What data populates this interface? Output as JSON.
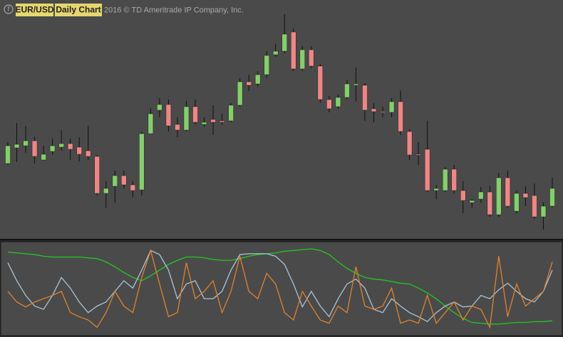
{
  "header": {
    "icon": "!",
    "symbol": "EUR/USD",
    "period": "Daily Chart",
    "copyright": "2016 © TD Ameritrade IP Company, Inc."
  },
  "chart_data": [
    {
      "type": "candlestick",
      "up_color": "#84cf6a",
      "down_color": "#f08585",
      "ylim": [
        0,
        335
      ],
      "open": [
        105,
        127,
        130,
        137,
        110,
        122,
        128,
        133,
        128,
        123,
        115,
        63,
        73,
        88,
        75,
        68,
        147,
        180,
        188,
        160,
        152,
        185,
        160,
        167,
        165,
        165,
        187,
        220,
        217,
        230,
        258,
        263,
        290,
        238,
        265,
        242,
        195,
        185,
        198,
        215,
        215,
        182,
        178,
        177,
        192,
        150,
        118,
        125,
        67,
        67,
        97,
        67,
        50,
        55,
        65,
        33,
        85,
        38,
        63,
        60,
        30,
        45
      ],
      "high": [
        135,
        162,
        158,
        143,
        130,
        140,
        152,
        140,
        142,
        158,
        117,
        80,
        95,
        95,
        80,
        150,
        183,
        197,
        195,
        170,
        193,
        195,
        170,
        187,
        175,
        190,
        225,
        230,
        235,
        263,
        273,
        315,
        295,
        270,
        270,
        245,
        200,
        202,
        223,
        240,
        218,
        190,
        185,
        197,
        208,
        153,
        135,
        165,
        75,
        100,
        103,
        80,
        55,
        72,
        73,
        92,
        95,
        67,
        73,
        77,
        50,
        85
      ],
      "low": [
        103,
        107,
        120,
        105,
        109,
        117,
        123,
        110,
        108,
        110,
        60,
        43,
        50,
        70,
        57,
        60,
        147,
        170,
        150,
        142,
        150,
        160,
        157,
        145,
        160,
        163,
        185,
        207,
        213,
        225,
        255,
        260,
        235,
        235,
        239,
        190,
        177,
        182,
        195,
        192,
        165,
        163,
        170,
        170,
        145,
        110,
        103,
        65,
        55,
        65,
        63,
        35,
        43,
        50,
        30,
        30,
        43,
        35,
        45,
        27,
        12,
        43
      ],
      "close": [
        130,
        132,
        137,
        115,
        118,
        130,
        133,
        125,
        118,
        115,
        63,
        70,
        88,
        75,
        67,
        147,
        175,
        188,
        158,
        152,
        185,
        163,
        163,
        163,
        163,
        187,
        220,
        215,
        230,
        257,
        263,
        287,
        238,
        265,
        242,
        195,
        182,
        198,
        217,
        217,
        180,
        178,
        177,
        192,
        150,
        117,
        117,
        67,
        70,
        97,
        67,
        53,
        53,
        65,
        33,
        85,
        45,
        63,
        57,
        30,
        45,
        70
      ]
    },
    {
      "type": "line",
      "ylim": [
        0,
        100
      ],
      "series": [
        {
          "color": "#22c722",
          "values": [
            96,
            95,
            94,
            93,
            91,
            90,
            90,
            90,
            90,
            89,
            88,
            84,
            78,
            71,
            65,
            61,
            67,
            74,
            81,
            86,
            90,
            90,
            89,
            87,
            86,
            86,
            88,
            91,
            93,
            94,
            95,
            97,
            98,
            99,
            100,
            98,
            93,
            84,
            76,
            70,
            65,
            63,
            62,
            60,
            58,
            57,
            52,
            46,
            39,
            30,
            22,
            15,
            10,
            9,
            8,
            8,
            9,
            10,
            10,
            11,
            11,
            12
          ]
        },
        {
          "color": "#a9c4d8",
          "values": [
            83,
            61,
            43,
            30,
            26,
            43,
            65,
            52,
            35,
            22,
            30,
            35,
            48,
            61,
            52,
            74,
            98,
            93,
            74,
            39,
            57,
            61,
            39,
            39,
            48,
            74,
            93,
            94,
            94,
            94,
            91,
            81,
            57,
            29,
            48,
            30,
            17,
            39,
            57,
            63,
            52,
            26,
            22,
            39,
            30,
            22,
            17,
            11,
            22,
            30,
            35,
            29,
            30,
            43,
            39,
            50,
            58,
            48,
            39,
            35,
            48,
            74
          ]
        },
        {
          "color": "#e0832c",
          "values": [
            48,
            35,
            29,
            35,
            39,
            43,
            48,
            22,
            17,
            13,
            4,
            22,
            48,
            30,
            22,
            65,
            98,
            57,
            17,
            22,
            83,
            39,
            48,
            61,
            22,
            48,
            91,
            48,
            39,
            70,
            57,
            22,
            13,
            48,
            30,
            13,
            9,
            30,
            22,
            78,
            30,
            26,
            30,
            52,
            9,
            13,
            9,
            43,
            9,
            22,
            35,
            13,
            30,
            26,
            4,
            91,
            17,
            57,
            30,
            39,
            48,
            84
          ]
        }
      ]
    }
  ]
}
